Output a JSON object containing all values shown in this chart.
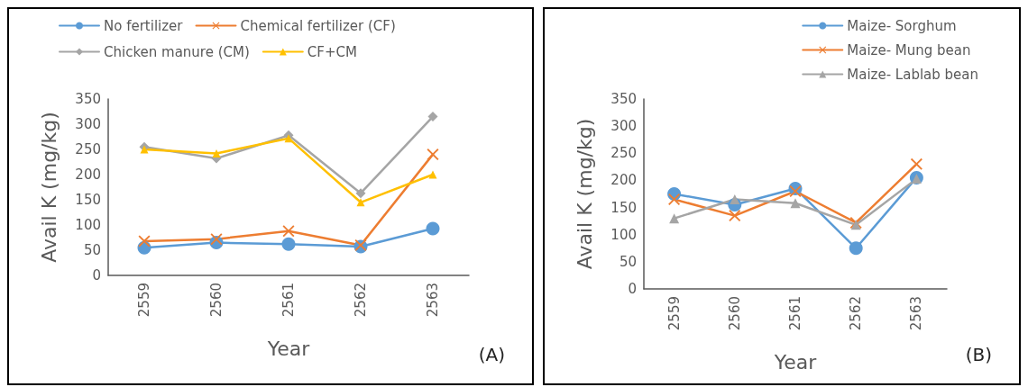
{
  "chart_data": [
    {
      "type": "line",
      "categories": [
        "2559",
        "2560",
        "2561",
        "2562",
        "2563"
      ],
      "xlabel": "Year",
      "ylabel": "Avail K (mg/kg)",
      "ylim": [
        0,
        350
      ],
      "yticks": [
        0,
        50,
        100,
        150,
        200,
        250,
        300,
        350
      ],
      "grid": false,
      "legend": "top",
      "annotations": [
        "(A)"
      ],
      "series": [
        {
          "name": "No fertilizer",
          "color": "#5b9bd5",
          "marker": "circle",
          "values": [
            55,
            65,
            62,
            57,
            93
          ]
        },
        {
          "name": "Chemical fertilizer (CF)",
          "color": "#ed7d31",
          "marker": "cross",
          "values": [
            68,
            72,
            88,
            60,
            240
          ]
        },
        {
          "name": "Chicken manure (CM)",
          "color": "#a5a5a5",
          "marker": "diamond",
          "values": [
            255,
            232,
            278,
            163,
            315
          ]
        },
        {
          "name": "CF+CM",
          "color": "#ffc000",
          "marker": "triangle",
          "values": [
            250,
            242,
            272,
            145,
            200
          ]
        }
      ]
    },
    {
      "type": "line",
      "categories": [
        "2559",
        "2560",
        "2561",
        "2562",
        "2563"
      ],
      "xlabel": "Year",
      "ylabel": "Avail K (mg/kg)",
      "ylim": [
        0,
        350
      ],
      "yticks": [
        0,
        50,
        100,
        150,
        200,
        250,
        300,
        350
      ],
      "grid": false,
      "legend": "top right",
      "annotations": [
        "(B)"
      ],
      "series": [
        {
          "name": "Maize- Sorghum",
          "color": "#5b9bd5",
          "marker": "circle",
          "values": [
            175,
            155,
            185,
            75,
            205
          ]
        },
        {
          "name": "Maize- Mung bean",
          "color": "#ed7d31",
          "marker": "cross",
          "values": [
            165,
            135,
            180,
            122,
            230
          ]
        },
        {
          "name": "Maize- Lablab bean",
          "color": "#a5a5a5",
          "marker": "triangle",
          "values": [
            130,
            165,
            158,
            118,
            203
          ]
        }
      ]
    }
  ]
}
